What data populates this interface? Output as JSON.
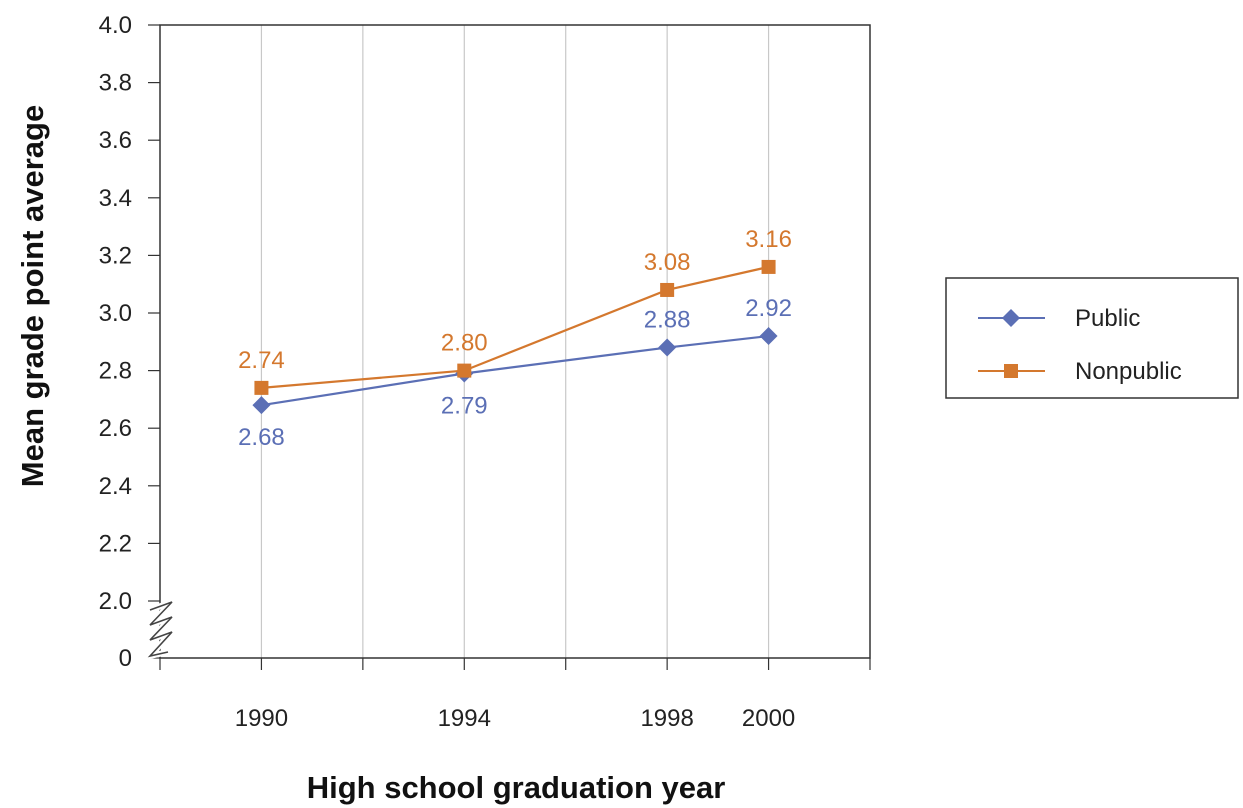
{
  "chart_data": {
    "type": "line",
    "title": "",
    "xlabel": "High school graduation year",
    "ylabel": "Mean grade point average",
    "x": [
      1990,
      1994,
      1998,
      2000
    ],
    "x_tick_labels": [
      "1990",
      "1994",
      "1998",
      "2000"
    ],
    "y_tick_labels": [
      "4.0",
      "3.8",
      "3.6",
      "3.4",
      "3.2",
      "3.0",
      "2.8",
      "2.6",
      "2.4",
      "2.2",
      "2.0",
      "0"
    ],
    "ylim": [
      2.0,
      4.0
    ],
    "y_axis_break": true,
    "grid": "vertical",
    "legend_position": "right",
    "series": [
      {
        "name": "Public",
        "marker": "diamond",
        "color": "#5b6fb5",
        "values": [
          2.68,
          2.79,
          2.88,
          2.92
        ],
        "labels": [
          "2.68",
          "2.79",
          "2.88",
          "2.92"
        ]
      },
      {
        "name": "Nonpublic",
        "marker": "square",
        "color": "#d4782e",
        "values": [
          2.74,
          2.8,
          3.08,
          3.16
        ],
        "labels": [
          "2.74",
          "2.80",
          "3.08",
          "3.16"
        ]
      }
    ]
  }
}
